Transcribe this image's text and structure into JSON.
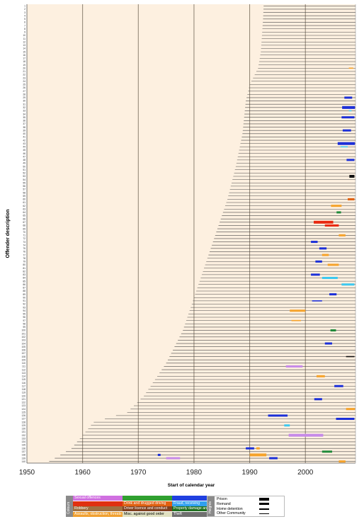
{
  "chart_data": {
    "type": "timeline",
    "xlabel": "Start of calendar year",
    "ylabel": "Offender description",
    "xlim": [
      1950,
      2009
    ],
    "x_ticks": [
      1950,
      1960,
      1970,
      1980,
      1990,
      2000
    ],
    "offender_count": 140,
    "birth_tail": [
      [
        1,
        1992.5
      ],
      [
        5,
        1992.4
      ],
      [
        10,
        1992.2
      ],
      [
        15,
        1992.0
      ],
      [
        20,
        1991.5
      ],
      [
        25,
        1990.0
      ],
      [
        30,
        1989.3
      ],
      [
        40,
        1988.7
      ],
      [
        50,
        1987.5
      ],
      [
        60,
        1986.0
      ],
      [
        70,
        1984.0
      ],
      [
        80,
        1982.0
      ],
      [
        90,
        1980.0
      ],
      [
        100,
        1978.0
      ],
      [
        110,
        1975.0
      ],
      [
        120,
        1971.0
      ],
      [
        125,
        1968.0
      ],
      [
        128,
        1962.0
      ],
      [
        132,
        1960.0
      ],
      [
        136,
        1958.0
      ],
      [
        140,
        1954.0
      ]
    ],
    "offence_periods": [
      {
        "offender": 20,
        "start": 2007.8,
        "end": 2008.6,
        "category": "assaults",
        "level": "other"
      },
      {
        "offender": 29,
        "start": 2007.0,
        "end": 2008.4,
        "category": "fraud",
        "level": "remand"
      },
      {
        "offender": 32,
        "start": 2006.6,
        "end": 2008.9,
        "category": "fraud",
        "level": "prison"
      },
      {
        "offender": 33,
        "start": 2007.8,
        "end": 2008.3,
        "category": "fraud_light",
        "level": "other"
      },
      {
        "offender": 35,
        "start": 2006.5,
        "end": 2008.8,
        "category": "fraud",
        "level": "remand"
      },
      {
        "offender": 39,
        "start": 2006.7,
        "end": 2008.2,
        "category": "fraud",
        "level": "remand"
      },
      {
        "offender": 43,
        "start": 2005.8,
        "end": 2008.9,
        "category": "fraud",
        "level": "prison"
      },
      {
        "offender": 44,
        "start": 2006.3,
        "end": 2007.6,
        "category": "fraud_light",
        "level": "other"
      },
      {
        "offender": 48,
        "start": 2007.4,
        "end": 2008.8,
        "category": "fraud",
        "level": "remand"
      },
      {
        "offender": 53,
        "start": 2007.9,
        "end": 2008.8,
        "category": "misc",
        "level": "prison"
      },
      {
        "offender": 60,
        "start": 2007.6,
        "end": 2008.8,
        "category": "drink_driving",
        "level": "remand"
      },
      {
        "offender": 62,
        "start": 2004.6,
        "end": 2006.5,
        "category": "assaults",
        "level": "remand"
      },
      {
        "offender": 64,
        "start": 2005.6,
        "end": 2006.4,
        "category": "property",
        "level": "remand"
      },
      {
        "offender": 67,
        "start": 2001.5,
        "end": 2005.0,
        "category": "burglary",
        "level": "prison"
      },
      {
        "offender": 68,
        "start": 2003.5,
        "end": 2006.0,
        "category": "burglary",
        "level": "remand"
      },
      {
        "offender": 71,
        "start": 2006.0,
        "end": 2007.2,
        "category": "assaults",
        "level": "remand"
      },
      {
        "offender": 73,
        "start": 2001.0,
        "end": 2002.2,
        "category": "fraud",
        "level": "remand"
      },
      {
        "offender": 75,
        "start": 2002.5,
        "end": 2003.8,
        "category": "fraud",
        "level": "remand"
      },
      {
        "offender": 77,
        "start": 2003.0,
        "end": 2004.2,
        "category": "assaults",
        "level": "remand"
      },
      {
        "offender": 79,
        "start": 2001.8,
        "end": 2003.0,
        "category": "fraud",
        "level": "remand"
      },
      {
        "offender": 80,
        "start": 2004.0,
        "end": 2006.0,
        "category": "assaults",
        "level": "remand"
      },
      {
        "offender": 83,
        "start": 2001.0,
        "end": 2002.6,
        "category": "fraud",
        "level": "remand"
      },
      {
        "offender": 84,
        "start": 2003.0,
        "end": 2005.8,
        "category": "fraud_light",
        "level": "remand"
      },
      {
        "offender": 86,
        "start": 2006.5,
        "end": 2008.8,
        "category": "fraud_light",
        "level": "remand"
      },
      {
        "offender": 89,
        "start": 2004.3,
        "end": 2005.6,
        "category": "fraud",
        "level": "remand"
      },
      {
        "offender": 91,
        "start": 2001.2,
        "end": 2003.0,
        "category": "fraud",
        "level": "other"
      },
      {
        "offender": 94,
        "start": 1997.2,
        "end": 2000.0,
        "category": "assaults",
        "level": "remand"
      },
      {
        "offender": 97,
        "start": 1997.5,
        "end": 1999.2,
        "category": "assaults",
        "level": "other"
      },
      {
        "offender": 100,
        "start": 2004.5,
        "end": 2005.5,
        "category": "property",
        "level": "remand"
      },
      {
        "offender": 104,
        "start": 2003.5,
        "end": 2004.8,
        "category": "fraud",
        "level": "remand"
      },
      {
        "offender": 108,
        "start": 2007.3,
        "end": 2008.8,
        "category": "misc",
        "level": "other"
      },
      {
        "offender": 111,
        "start": 1996.5,
        "end": 1999.5,
        "category": "sexual",
        "level": "remand"
      },
      {
        "offender": 114,
        "start": 2002.0,
        "end": 2003.5,
        "category": "assaults",
        "level": "remand"
      },
      {
        "offender": 117,
        "start": 2005.2,
        "end": 2006.8,
        "category": "fraud",
        "level": "remand"
      },
      {
        "offender": 121,
        "start": 2001.6,
        "end": 2003.0,
        "category": "fraud",
        "level": "remand"
      },
      {
        "offender": 124,
        "start": 2007.3,
        "end": 2008.9,
        "category": "assaults",
        "level": "remand"
      },
      {
        "offender": 126,
        "start": 1993.3,
        "end": 1996.8,
        "category": "fraud",
        "level": "remand"
      },
      {
        "offender": 127,
        "start": 2005.5,
        "end": 2008.8,
        "category": "fraud",
        "level": "remand"
      },
      {
        "offender": 129,
        "start": 1996.2,
        "end": 1997.2,
        "category": "fraud_light",
        "level": "remand"
      },
      {
        "offender": 132,
        "start": 1997.0,
        "end": 2003.2,
        "category": "sexual",
        "level": "prison"
      },
      {
        "offender": 136,
        "start": 1989.3,
        "end": 1990.8,
        "category": "fraud",
        "level": "remand"
      },
      {
        "offender": 136,
        "start": 1991.2,
        "end": 1991.8,
        "category": "assaults",
        "level": "remand"
      },
      {
        "offender": 137,
        "start": 2003.0,
        "end": 2004.8,
        "category": "property",
        "level": "remand"
      },
      {
        "offender": 138,
        "start": 1990.0,
        "end": 1993.0,
        "category": "assaults",
        "level": "prison"
      },
      {
        "offender": 138,
        "start": 1973.5,
        "end": 1974.0,
        "category": "fraud",
        "level": "remand"
      },
      {
        "offender": 139,
        "start": 1975.0,
        "end": 1977.5,
        "category": "sexual",
        "level": "remand"
      },
      {
        "offender": 139,
        "start": 1993.5,
        "end": 1995.0,
        "category": "fraud",
        "level": "remand"
      },
      {
        "offender": 140,
        "start": 2006.0,
        "end": 2007.2,
        "category": "assaults",
        "level": "remand"
      }
    ]
  },
  "legend": {
    "colours_label": "Colours",
    "heights_label": "Heights",
    "categories": [
      {
        "label": "Sexual offences",
        "color": "#d070e0"
      },
      {
        "label": "",
        "color": "#e03010"
      },
      {
        "label": "Robbery",
        "color": "#a07040"
      },
      {
        "label": "Assaults, obstruction, threats",
        "color": "#f0a030"
      },
      {
        "label": "",
        "color": "#30a030"
      },
      {
        "label": "Drink and drugged driving",
        "color": "#e06010"
      },
      {
        "label": "Driver licence and conduct",
        "color": "#804020"
      },
      {
        "label": "Misc. against good order",
        "color": "#e0e0c0"
      },
      {
        "label": "",
        "color": "#2040e0"
      },
      {
        "label": "Fraud, receiving",
        "color": "#30a0f0"
      },
      {
        "label": "Property damage and endangering",
        "color": "#207020"
      },
      {
        "label": "Theft",
        "color": "#707070"
      }
    ],
    "heights": [
      {
        "label": "Prison",
        "thickness": 4
      },
      {
        "label": "Remand",
        "thickness": 3
      },
      {
        "label": "Home detention",
        "thickness": 2
      },
      {
        "label": "Other Community",
        "thickness": 1
      }
    ]
  },
  "colors": {
    "background": "#fdf0e0",
    "sexual": "#c68ae8",
    "burglary": "#e82810",
    "assaults": "#f5a22a",
    "drink_driving": "#e06010",
    "misc": "#111111",
    "fraud": "#1b2fd8",
    "fraud_light": "#3cc8f0",
    "property": "#1f8a3a",
    "theft": "#707070"
  }
}
